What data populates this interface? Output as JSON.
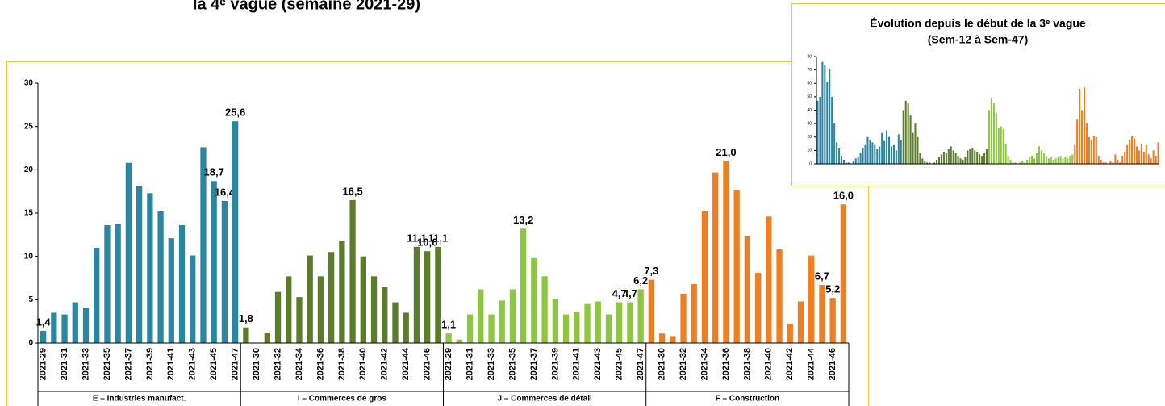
{
  "page_title": "la 4ᵉ vague (semaine 2021-29)",
  "chart_data": [
    {
      "type": "bar",
      "ylim": [
        0,
        30
      ],
      "yticks": [
        0,
        5,
        10,
        15,
        20,
        25,
        30
      ],
      "series": [
        {
          "name": "E – Industries manufact.",
          "color": "#2b87a1",
          "categories": [
            "2021-29",
            null,
            "2021-31",
            null,
            "2021-33",
            null,
            "2021-35",
            null,
            "2021-37",
            null,
            "2021-39",
            null,
            "2021-41",
            null,
            "2021-43",
            null,
            "2021-45",
            null,
            "2021-47"
          ],
          "values": [
            1.4,
            3.5,
            3.3,
            4.7,
            4.1,
            11.0,
            13.6,
            13.7,
            20.8,
            18.1,
            17.3,
            15.2,
            12.1,
            13.6,
            10.1,
            22.6,
            18.7,
            16.4,
            25.6
          ],
          "value_labels": [
            "1,4",
            null,
            null,
            null,
            null,
            null,
            null,
            null,
            null,
            null,
            null,
            null,
            null,
            null,
            null,
            null,
            "18,7",
            "16,4",
            "25,6"
          ]
        },
        {
          "name": "I – Commerces de gros",
          "color": "#5a7c2b",
          "categories": [
            null,
            "2021-30",
            null,
            "2021-32",
            null,
            "2021-34",
            null,
            "2021-36",
            null,
            "2021-38",
            null,
            "2021-40",
            null,
            "2021-42",
            null,
            "2021-44",
            null,
            "2021-46",
            null
          ],
          "values": [
            1.8,
            0,
            1.2,
            5.9,
            7.7,
            5.3,
            10.1,
            7.7,
            10.5,
            11.8,
            16.5,
            10.0,
            7.7,
            6.5,
            4.7,
            3.5,
            11.1,
            10.6,
            11.1
          ],
          "value_labels": [
            "1,8",
            null,
            null,
            null,
            null,
            null,
            null,
            null,
            null,
            null,
            "16,5",
            null,
            null,
            null,
            null,
            null,
            "11,1",
            "10,6",
            "11,1"
          ]
        },
        {
          "name": "J – Commerces de détail",
          "color": "#8dc63f",
          "categories": [
            "2021-29",
            null,
            "2021-31",
            null,
            "2021-33",
            null,
            "2021-35",
            null,
            "2021-37",
            null,
            "2021-39",
            null,
            "2021-41",
            null,
            "2021-43",
            null,
            "2021-45",
            null,
            "2021-47"
          ],
          "values": [
            1.1,
            0.4,
            3.3,
            6.2,
            3.3,
            4.9,
            6.2,
            13.2,
            9.8,
            7.7,
            5.1,
            3.3,
            3.6,
            4.5,
            4.8,
            3.3,
            4.7,
            4.7,
            6.2
          ],
          "value_labels": [
            "1,1",
            null,
            null,
            null,
            null,
            null,
            null,
            "13,2",
            null,
            null,
            null,
            null,
            null,
            null,
            null,
            null,
            "4,7",
            "4,7",
            "6,2"
          ]
        },
        {
          "name": "F – Construction",
          "color": "#f07d22",
          "categories": [
            null,
            "2021-30",
            null,
            "2021-32",
            null,
            "2021-34",
            null,
            "2021-36",
            null,
            "2021-38",
            null,
            "2021-40",
            null,
            "2021-42",
            null,
            "2021-44",
            null,
            "2021-46",
            null
          ],
          "values": [
            7.3,
            1.1,
            0.8,
            5.7,
            6.8,
            15.2,
            19.7,
            21.0,
            17.6,
            12.3,
            8.1,
            14.6,
            10.8,
            2.2,
            4.8,
            10.1,
            6.7,
            5.2,
            16.0
          ],
          "value_labels": [
            "7,3",
            null,
            null,
            null,
            null,
            null,
            null,
            "21,0",
            null,
            null,
            null,
            null,
            null,
            null,
            null,
            null,
            "6,7",
            "5,2",
            "16,0"
          ]
        }
      ]
    },
    {
      "type": "bar",
      "title": "Évolution depuis le début de la 3ᵉ vague",
      "subtitle": "(Sem-12 à Sem-47)",
      "ylim": [
        0,
        80
      ],
      "yticks": [
        0,
        10,
        20,
        30,
        40,
        50,
        60,
        70,
        80
      ],
      "series": [
        {
          "color": "#2b87a1",
          "values": [
            47,
            50,
            76,
            74,
            61,
            71,
            50,
            30,
            16,
            12,
            6,
            3,
            1,
            1,
            0,
            2,
            4,
            5,
            8,
            12,
            14,
            20,
            18,
            16,
            14,
            11,
            13,
            23,
            17,
            25,
            20,
            13,
            14,
            10,
            22,
            18
          ]
        },
        {
          "color": "#5a7c2b",
          "values": [
            40,
            47,
            45,
            36,
            23,
            30,
            20,
            8,
            4,
            2,
            1,
            1,
            0,
            1,
            3,
            5,
            7,
            9,
            8,
            11,
            13,
            10,
            8,
            6,
            4,
            3,
            5,
            10,
            11,
            12,
            10,
            9,
            7,
            6,
            8,
            11
          ]
        },
        {
          "color": "#8dc63f",
          "values": [
            40,
            49,
            45,
            38,
            27,
            28,
            26,
            15,
            6,
            3,
            1,
            1,
            0,
            1,
            2,
            1,
            3,
            5,
            6,
            4,
            8,
            13,
            10,
            8,
            6,
            4,
            5,
            3,
            4,
            5,
            6,
            4,
            5,
            4,
            6,
            7
          ]
        },
        {
          "color": "#f07d22",
          "values": [
            14,
            33,
            56,
            40,
            57,
            30,
            20,
            18,
            21,
            20,
            6,
            3,
            1,
            1,
            0,
            2,
            1,
            7,
            3,
            1,
            6,
            9,
            14,
            18,
            21,
            19,
            13,
            10,
            15,
            9,
            14,
            7,
            4,
            10,
            6,
            16
          ]
        }
      ]
    }
  ]
}
